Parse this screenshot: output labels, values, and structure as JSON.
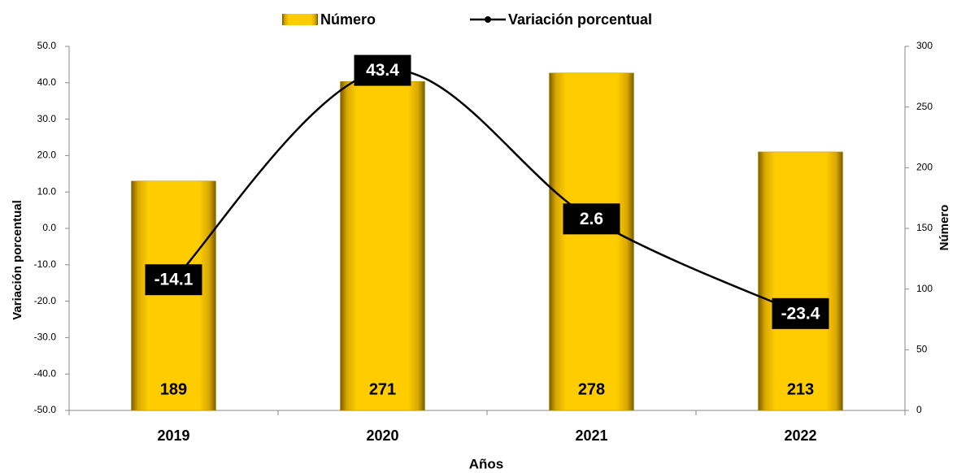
{
  "chart_data": {
    "type": "bar",
    "categories": [
      "2019",
      "2020",
      "2021",
      "2022"
    ],
    "series": [
      {
        "name": "Número",
        "type": "bar",
        "axis": "y2",
        "color": "#ffcc00",
        "values": [
          189,
          271,
          278,
          213
        ]
      },
      {
        "name": "Variación porcentual",
        "type": "line",
        "color": "#000000",
        "values": [
          -14.1,
          43.4,
          2.6,
          -23.4
        ]
      }
    ],
    "ylabel": "Variación porcentual",
    "y2label": "Número",
    "xlabel": "Años",
    "ylim": [
      -50,
      50
    ],
    "yticks": [
      {
        "value": -50,
        "label": "-50.0"
      },
      {
        "value": -40,
        "label": "-40.0"
      },
      {
        "value": -30,
        "label": "-30.0"
      },
      {
        "value": -20,
        "label": "-20.0"
      },
      {
        "value": -10,
        "label": "-10.0"
      },
      {
        "value": 0,
        "label": "0.0"
      },
      {
        "value": 10,
        "label": "10.0"
      },
      {
        "value": 20,
        "label": "20.0"
      },
      {
        "value": 30,
        "label": "30.0"
      },
      {
        "value": 40,
        "label": "40.0"
      },
      {
        "value": 50,
        "label": "50.0"
      }
    ],
    "y2lim": [
      0,
      300
    ],
    "y2ticks": [
      0,
      50,
      100,
      150,
      200,
      250,
      300
    ],
    "legend": "top"
  }
}
